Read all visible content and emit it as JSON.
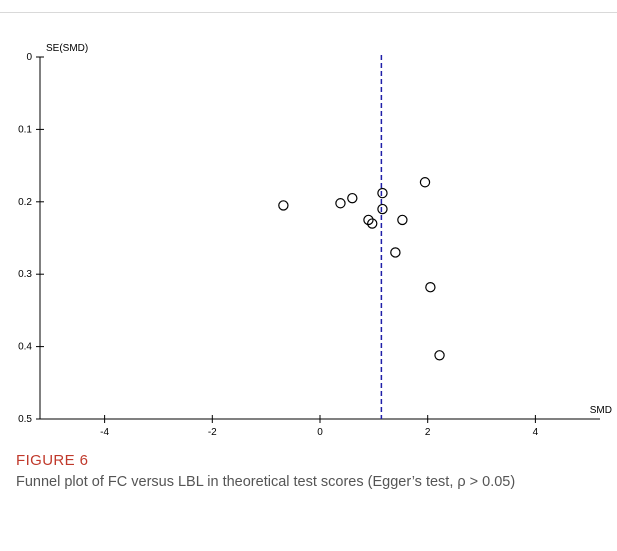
{
  "figure": {
    "label": "FIGURE 6",
    "caption": "Funnel plot of FC versus LBL in theoretical test scores (Egger’s test, ρ > 0.05)"
  },
  "chart_data": {
    "type": "scatter",
    "title": "",
    "xlabel": "SMD",
    "ylabel": "SE(SMD)",
    "xlim": [
      -5.2,
      5.2
    ],
    "ylim": [
      0,
      0.5
    ],
    "y_inverted": true,
    "xticks": [
      -4,
      -2,
      0,
      2,
      4
    ],
    "xtick_labels": [
      "-4",
      "-2",
      "0",
      "2",
      "4"
    ],
    "yticks": [
      0,
      0.1,
      0.2,
      0.3,
      0.4,
      0.5
    ],
    "ytick_labels": [
      "0",
      "0.1",
      "0.2",
      "0.3",
      "0.4",
      "0.5"
    ],
    "pooled_estimate": 1.14,
    "grid": false,
    "marker": "open-circle",
    "colors": {
      "points": "#000000",
      "pooled_line": "#1f1fa8",
      "axes": "#000000"
    },
    "points": [
      {
        "x": -0.68,
        "y": 0.205
      },
      {
        "x": 0.38,
        "y": 0.202
      },
      {
        "x": 0.6,
        "y": 0.195
      },
      {
        "x": 0.9,
        "y": 0.225
      },
      {
        "x": 0.97,
        "y": 0.23
      },
      {
        "x": 1.16,
        "y": 0.188
      },
      {
        "x": 1.16,
        "y": 0.21
      },
      {
        "x": 1.4,
        "y": 0.27
      },
      {
        "x": 1.53,
        "y": 0.225
      },
      {
        "x": 1.95,
        "y": 0.173
      },
      {
        "x": 2.05,
        "y": 0.318
      },
      {
        "x": 2.22,
        "y": 0.412
      }
    ]
  }
}
